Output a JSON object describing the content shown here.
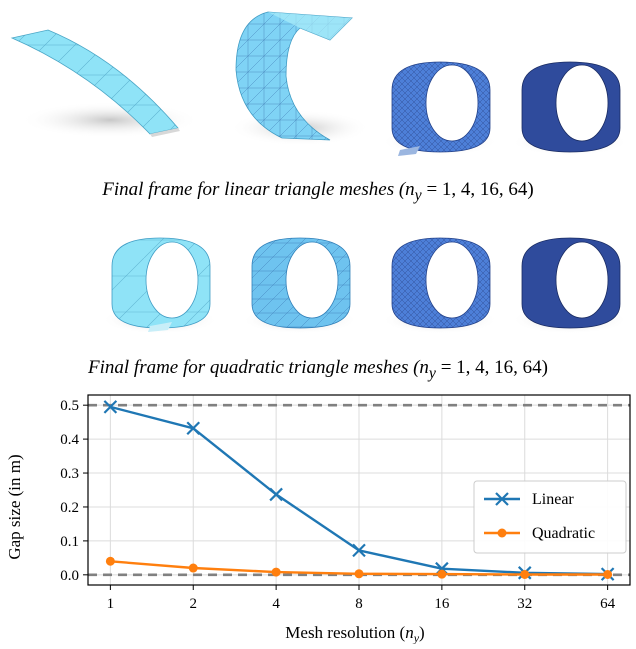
{
  "figure": {
    "caption_linear_prefix": "Final frame for linear triangle meshes (",
    "caption_quadratic_prefix": "Final frame for quadratic triangle meshes (",
    "caption_var": "n",
    "caption_sub": "y",
    "caption_suffix": " = 1, 4, 16, 64)",
    "panels_linear": [
      {
        "label": "n_y = 1",
        "shape": "strip",
        "color": "#8fe3f7"
      },
      {
        "label": "n_y = 4",
        "shape": "curl",
        "color": "#7fd3f5"
      },
      {
        "label": "n_y = 16",
        "shape": "cylinder",
        "color": "#4d7fd8"
      },
      {
        "label": "n_y = 64",
        "shape": "cylinder",
        "color": "#2f4b9c"
      }
    ],
    "panels_quadratic": [
      {
        "label": "n_y = 1",
        "shape": "cylinder",
        "color": "#8fe3f7"
      },
      {
        "label": "n_y = 4",
        "shape": "cylinder",
        "color": "#6ec3ef"
      },
      {
        "label": "n_y = 16",
        "shape": "cylinder",
        "color": "#4d7fd8"
      },
      {
        "label": "n_y = 64",
        "shape": "cylinder",
        "color": "#2f4b9c"
      }
    ]
  },
  "chart_data": {
    "type": "line",
    "x": [
      1,
      2,
      4,
      8,
      16,
      32,
      64
    ],
    "x_scale": "log2",
    "xlabel_main": "Mesh resolution (",
    "xlabel_var": "n",
    "xlabel_sub": "y",
    "xlabel_close": ")",
    "ylabel": "Gap size (in m)",
    "ylim": [
      -0.03,
      0.53
    ],
    "yticks": [
      0.0,
      0.1,
      0.2,
      0.3,
      0.4,
      0.5
    ],
    "ytick_labels": [
      "0.0",
      "0.1",
      "0.2",
      "0.3",
      "0.4",
      "0.5"
    ],
    "xtick_labels": [
      "1",
      "2",
      "4",
      "8",
      "16",
      "32",
      "64"
    ],
    "reference_lines": [
      0.5,
      0.0
    ],
    "grid": true,
    "legend_position": "center-right",
    "series": [
      {
        "name": "Linear",
        "color": "#1f77b4",
        "marker": "x",
        "values": [
          0.495,
          0.432,
          0.237,
          0.072,
          0.018,
          0.006,
          0.002
        ]
      },
      {
        "name": "Quadratic",
        "color": "#ff7f0e",
        "marker": "o",
        "values": [
          0.04,
          0.02,
          0.008,
          0.003,
          0.002,
          0.001,
          0.001
        ]
      }
    ]
  }
}
